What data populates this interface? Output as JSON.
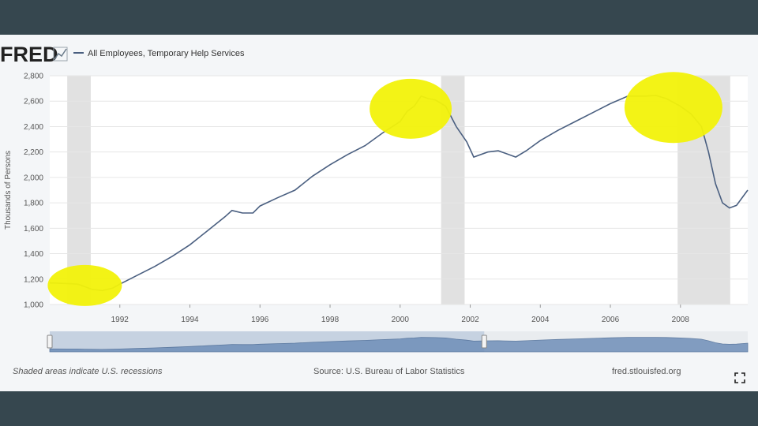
{
  "header": {
    "logo_text": "FRED",
    "legend_label": "All Employees, Temporary Help Services"
  },
  "footer": {
    "note": "Shaded areas indicate U.S. recessions",
    "source": "Source: U.S. Bureau of Labor Statistics",
    "site": "fred.stlouisfed.org"
  },
  "colors": {
    "series": "#4a5f80",
    "recession_shade": "#e1e1e1",
    "highlight": "#f2f20a",
    "grid": "#e6e6e6",
    "navigator_fill": "#6f8fb8"
  },
  "icons": {
    "logo_chart": "chart-logo-icon",
    "expand": "fullscreen-expand-icon"
  },
  "chart_data": {
    "type": "line",
    "ylabel": "Thousands of Persons",
    "xlabel": "",
    "ylim": [
      1000,
      2800
    ],
    "xlim": [
      1990.0,
      2009.92
    ],
    "yticks": [
      "1,000",
      "1,200",
      "1,400",
      "1,600",
      "1,800",
      "2,000",
      "2,200",
      "2,400",
      "2,600",
      "2,800"
    ],
    "yticks_values": [
      1000,
      1200,
      1400,
      1600,
      1800,
      2000,
      2200,
      2400,
      2600,
      2800
    ],
    "xticks": [
      "1992",
      "1994",
      "1996",
      "1998",
      "2000",
      "2002",
      "2004",
      "2006",
      "2008"
    ],
    "xticks_values": [
      1992,
      1994,
      1996,
      1998,
      2000,
      2002,
      2004,
      2006,
      2008
    ],
    "grid": true,
    "legend_position": "top-left",
    "recessions": [
      [
        1990.5,
        1991.17
      ],
      [
        2001.17,
        2001.84
      ],
      [
        2007.92,
        2009.42
      ]
    ],
    "highlights": [
      [
        1991.0,
        1150
      ],
      [
        2000.3,
        2540
      ],
      [
        2007.8,
        2550
      ]
    ],
    "series": [
      {
        "name": "All Employees, Temporary Help Services",
        "x": [
          1990.0,
          1990.5,
          1990.8,
          1991.0,
          1991.2,
          1991.5,
          1991.8,
          1992.0,
          1992.5,
          1993.0,
          1993.5,
          1994.0,
          1994.5,
          1995.0,
          1995.2,
          1995.5,
          1995.8,
          1996.0,
          1996.5,
          1997.0,
          1997.5,
          1998.0,
          1998.5,
          1999.0,
          1999.5,
          2000.0,
          2000.2,
          2000.4,
          2000.6,
          2000.8,
          2001.0,
          2001.3,
          2001.6,
          2001.9,
          2002.1,
          2002.5,
          2002.8,
          2003.0,
          2003.3,
          2003.6,
          2003.8,
          2004.0,
          2004.5,
          2005.0,
          2005.5,
          2006.0,
          2006.5,
          2007.0,
          2007.3,
          2007.6,
          2008.0,
          2008.3,
          2008.6,
          2008.8,
          2009.0,
          2009.2,
          2009.4,
          2009.6,
          2009.92
        ],
        "y": [
          1170,
          1165,
          1160,
          1140,
          1120,
          1110,
          1130,
          1160,
          1230,
          1300,
          1380,
          1470,
          1580,
          1690,
          1740,
          1720,
          1720,
          1775,
          1840,
          1900,
          2010,
          2100,
          2180,
          2250,
          2350,
          2440,
          2520,
          2560,
          2640,
          2620,
          2610,
          2560,
          2400,
          2280,
          2160,
          2200,
          2210,
          2190,
          2160,
          2210,
          2250,
          2290,
          2370,
          2440,
          2510,
          2580,
          2640,
          2640,
          2645,
          2620,
          2560,
          2500,
          2400,
          2200,
          1950,
          1800,
          1760,
          1780,
          1900
        ]
      }
    ],
    "navigator_handles": [
      1990.0,
      2002.4
    ]
  }
}
